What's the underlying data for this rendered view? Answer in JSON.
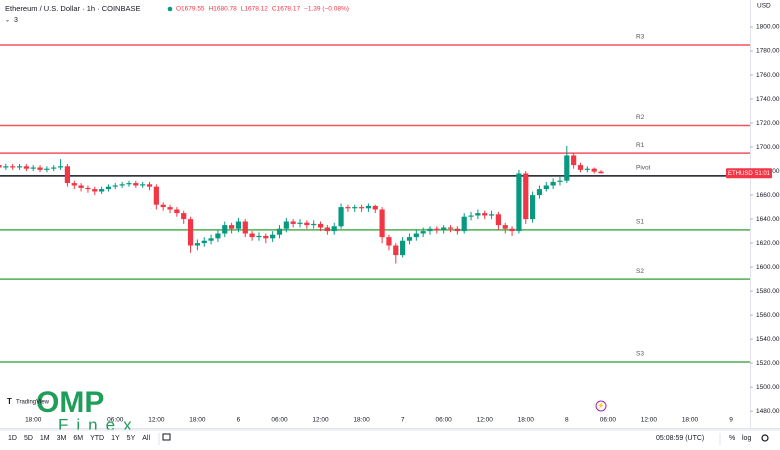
{
  "chart_data": {
    "type": "candlestick",
    "title": "Ethereum / U.S. Dollar · 1h · COINBASE",
    "header_values": [
      "O1679.55",
      "H1680.78",
      "L1678.12",
      "C1678.17",
      "−1.39 (−0.08%)"
    ],
    "indicator_count": "3",
    "currency": "USD",
    "up_color": "#089981",
    "down_color": "#f23645",
    "categories": [
      null,
      null,
      null,
      null,
      null,
      "18:00",
      null,
      null,
      null,
      null,
      null,
      null,
      null,
      null,
      null,
      null,
      null,
      "06:00",
      null,
      null,
      null,
      null,
      null,
      "12:00",
      null,
      null,
      null,
      null,
      null,
      "18:00",
      null,
      null,
      null,
      null,
      null,
      "6",
      null,
      null,
      null,
      null,
      null,
      "06:00",
      null,
      null,
      null,
      null,
      null,
      "12:00",
      null,
      null,
      null,
      null,
      null,
      "18:00",
      null,
      null,
      null,
      null,
      null,
      "7",
      null,
      null,
      null,
      null,
      null,
      "06:00",
      null,
      null,
      null,
      null,
      null,
      "12:00",
      null,
      null,
      null,
      null,
      null,
      "18:00",
      null,
      null,
      null,
      null,
      null,
      "8",
      null,
      null,
      null,
      null,
      null,
      "06:00",
      null,
      null,
      null,
      null,
      null,
      "12:00",
      null,
      null,
      null,
      null,
      null,
      "18:00",
      null,
      null,
      null,
      null,
      null,
      "9"
    ],
    "open": [
      1685,
      1683,
      1684,
      1683,
      1684,
      1682,
      1683,
      1681,
      1682,
      1683,
      1684,
      1670,
      1668,
      1666,
      1665,
      1663,
      1665,
      1667,
      1668,
      1669,
      1670,
      1668,
      1669,
      1667,
      1652,
      1650,
      1648,
      1645,
      1640,
      1618,
      1620,
      1622,
      1624,
      1628,
      1635,
      1632,
      1638,
      1628,
      1625,
      1626,
      1624,
      1627,
      1632,
      1638,
      1636,
      1637,
      1635,
      1636,
      1633,
      1630,
      1634,
      1650,
      1649,
      1650,
      1649,
      1651,
      1648,
      1625,
      1618,
      1610,
      1622,
      1625,
      1628,
      1630,
      1632,
      1631,
      1633,
      1632,
      1630,
      1642,
      1643,
      1645,
      1643,
      1644,
      1635,
      1632,
      1630,
      1678,
      1640,
      1660,
      1665,
      1668,
      1671,
      1672,
      1693,
      1685,
      1681,
      1682,
      1679.55,
      null,
      null,
      null,
      null,
      null,
      null,
      null,
      null,
      null,
      null,
      null,
      null,
      null,
      null,
      null,
      null,
      null,
      null,
      null
    ],
    "high": [
      1687,
      1686,
      1686,
      1686,
      1686,
      1685,
      1685,
      1684,
      1685,
      1690,
      1686,
      1672,
      1670,
      1668,
      1667,
      1667,
      1669,
      1670,
      1671,
      1672,
      1672,
      1671,
      1671,
      1669,
      1654,
      1652,
      1650,
      1647,
      1642,
      1623,
      1625,
      1627,
      1631,
      1638,
      1637,
      1641,
      1640,
      1630,
      1629,
      1628,
      1630,
      1635,
      1641,
      1640,
      1640,
      1639,
      1639,
      1638,
      1635,
      1637,
      1653,
      1652,
      1652,
      1652,
      1653,
      1652,
      1650,
      1627,
      1620,
      1625,
      1628,
      1631,
      1633,
      1634,
      1634,
      1635,
      1635,
      1634,
      1645,
      1646,
      1648,
      1647,
      1647,
      1646,
      1637,
      1634,
      1681,
      1680,
      1663,
      1668,
      1671,
      1674,
      1676,
      1701,
      1695,
      1687,
      1684,
      1683,
      1680.78,
      null,
      null,
      null,
      null,
      null,
      null,
      null,
      null,
      null,
      null,
      null,
      null,
      null,
      null,
      null,
      null,
      null,
      null,
      null
    ],
    "low": [
      1681,
      1681,
      1681,
      1681,
      1680,
      1680,
      1679,
      1679,
      1680,
      1681,
      1667,
      1665,
      1663,
      1662,
      1660,
      1661,
      1663,
      1665,
      1666,
      1667,
      1666,
      1666,
      1664,
      1648,
      1647,
      1645,
      1642,
      1636,
      1612,
      1614,
      1617,
      1619,
      1621,
      1625,
      1628,
      1629,
      1625,
      1622,
      1622,
      1620,
      1621,
      1624,
      1629,
      1633,
      1633,
      1632,
      1632,
      1630,
      1627,
      1627,
      1632,
      1646,
      1646,
      1646,
      1646,
      1645,
      1620,
      1614,
      1603,
      1608,
      1619,
      1622,
      1625,
      1627,
      1628,
      1628,
      1629,
      1627,
      1628,
      1639,
      1640,
      1640,
      1640,
      1631,
      1628,
      1626,
      1628,
      1636,
      1637,
      1657,
      1663,
      1665,
      1668,
      1670,
      1682,
      1679,
      1679,
      1678,
      1678.12,
      null,
      null,
      null,
      null,
      null,
      null,
      null,
      null,
      null,
      null,
      null,
      null,
      null,
      null,
      null,
      null,
      null,
      null,
      null
    ],
    "close": [
      1683,
      1684,
      1683,
      1684,
      1682,
      1683,
      1681,
      1682,
      1683,
      1684,
      1670,
      1668,
      1666,
      1665,
      1663,
      1665,
      1667,
      1668,
      1669,
      1670,
      1668,
      1669,
      1667,
      1652,
      1650,
      1648,
      1645,
      1640,
      1618,
      1620,
      1622,
      1624,
      1628,
      1635,
      1632,
      1638,
      1628,
      1625,
      1626,
      1624,
      1627,
      1632,
      1638,
      1636,
      1637,
      1635,
      1636,
      1633,
      1630,
      1634,
      1650,
      1649,
      1650,
      1649,
      1651,
      1648,
      1625,
      1618,
      1610,
      1622,
      1625,
      1628,
      1630,
      1632,
      1631,
      1633,
      1632,
      1630,
      1642,
      1643,
      1645,
      1643,
      1644,
      1635,
      1632,
      1630,
      1678,
      1640,
      1660,
      1665,
      1668,
      1671,
      1672,
      1693,
      1685,
      1681,
      1682,
      1679.55,
      1678.17,
      null,
      null,
      null,
      null,
      null,
      null,
      null,
      null,
      null,
      null,
      null,
      null,
      null,
      null,
      null,
      null,
      null,
      null,
      null
    ],
    "ylim": [
      1466,
      1822.5
    ],
    "yticks": [
      {
        "value": 1480,
        "label": "1480.00"
      },
      {
        "value": 1500,
        "label": "1500.00"
      },
      {
        "value": 1520,
        "label": "1520.00"
      },
      {
        "value": 1540,
        "label": "1540.00"
      },
      {
        "value": 1560,
        "label": "1560.00"
      },
      {
        "value": 1580,
        "label": "1580.00"
      },
      {
        "value": 1600,
        "label": "1600.00"
      },
      {
        "value": 1620,
        "label": "1620.00"
      },
      {
        "value": 1640,
        "label": "1640.00"
      },
      {
        "value": 1660,
        "label": "1660.00"
      },
      {
        "value": 1680,
        "label": "1680.00"
      },
      {
        "value": 1700,
        "label": "1700.00"
      },
      {
        "value": 1720,
        "label": "1720.00"
      },
      {
        "value": 1740,
        "label": "1740.00"
      },
      {
        "value": 1760,
        "label": "1760.00"
      },
      {
        "value": 1780,
        "label": "1780.00"
      },
      {
        "value": 1800,
        "label": "1800.00"
      }
    ],
    "levels": [
      {
        "name": "R3",
        "value": 1785,
        "color": "#f7525f"
      },
      {
        "name": "R2",
        "value": 1718,
        "color": "#f7525f"
      },
      {
        "name": "R1",
        "value": 1695,
        "color": "#f7525f"
      },
      {
        "name": "Pivot",
        "value": 1676,
        "color": "#131722"
      },
      {
        "name": "S1",
        "value": 1631,
        "color": "#4caf50"
      },
      {
        "name": "S2",
        "value": 1590,
        "color": "#4caf50"
      },
      {
        "name": "S3",
        "value": 1521,
        "color": "#4caf50"
      }
    ],
    "price_tag": {
      "symbol": "ETHUSD",
      "countdown": "51:01"
    }
  },
  "toolbar": {
    "ranges": [
      "1D",
      "5D",
      "1M",
      "3M",
      "6M",
      "YTD",
      "1Y",
      "5Y",
      "All"
    ],
    "clock": "05:08:59 (UTC)",
    "percent": "%",
    "log": "log"
  },
  "branding": {
    "tradingview": "TradingView",
    "watermark_main": "OMP",
    "watermark_sub": "Finex"
  }
}
